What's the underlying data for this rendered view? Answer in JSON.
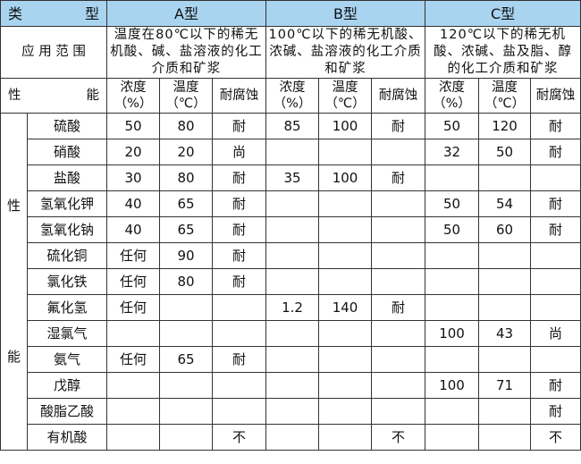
{
  "header": {
    "type_label": "类　　　型",
    "types": [
      "A型",
      "B型",
      "C型"
    ]
  },
  "application": {
    "label": "应 用 范 围",
    "scopes": [
      "温度在80℃以下的稀无机酸、碱、盐溶液的化工介质和矿浆",
      "100℃以下的稀无机酸、浓碱、盐溶液的化工介质和矿浆",
      "120℃以下的稀无机酸、浓碱、盐及脂、醇的化工介质和矿浆"
    ]
  },
  "performance": {
    "label": "性　　　能",
    "side_label_top": "性",
    "side_label_bottom": "能",
    "columns": [
      "浓度（%）",
      "温度（℃）",
      "耐腐蚀"
    ]
  },
  "colors": {
    "header_bg": "#a9d4f0",
    "border": "#333333"
  },
  "rows": [
    {
      "medium": "硫酸",
      "values": [
        "50",
        "80",
        "耐",
        "85",
        "100",
        "耐",
        "50",
        "120",
        "耐"
      ]
    },
    {
      "medium": "硝酸",
      "values": [
        "20",
        "20",
        "尚",
        "",
        "",
        "",
        "32",
        "50",
        "耐"
      ]
    },
    {
      "medium": "盐酸",
      "values": [
        "30",
        "80",
        "耐",
        "35",
        "100",
        "耐",
        "",
        "",
        ""
      ]
    },
    {
      "medium": "氢氧化钾",
      "values": [
        "40",
        "65",
        "耐",
        "",
        "",
        "",
        "50",
        "54",
        "耐"
      ]
    },
    {
      "medium": "氢氧化钠",
      "values": [
        "40",
        "65",
        "耐",
        "",
        "",
        "",
        "50",
        "60",
        "耐"
      ]
    },
    {
      "medium": "硫化铜",
      "values": [
        "任何",
        "90",
        "耐",
        "",
        "",
        "",
        "",
        "",
        ""
      ]
    },
    {
      "medium": "氯化铁",
      "values": [
        "任何",
        "80",
        "耐",
        "",
        "",
        "",
        "",
        "",
        ""
      ]
    },
    {
      "medium": "氟化氢",
      "values": [
        "任何",
        "",
        "",
        "1.2",
        "140",
        "耐",
        "",
        "",
        ""
      ]
    },
    {
      "medium": "湿氯气",
      "values": [
        "",
        "",
        "",
        "",
        "",
        "",
        "100",
        "43",
        "尚"
      ]
    },
    {
      "medium": "氨气",
      "values": [
        "任何",
        "65",
        "耐",
        "",
        "",
        "",
        "",
        "",
        ""
      ]
    },
    {
      "medium": "戊醇",
      "values": [
        "",
        "",
        "",
        "",
        "",
        "",
        "100",
        "71",
        "耐"
      ]
    },
    {
      "medium": "酸脂乙酸",
      "values": [
        "",
        "",
        "",
        "",
        "",
        "",
        "",
        "",
        "耐"
      ]
    },
    {
      "medium": "有机酸",
      "values": [
        "",
        "",
        "不",
        "",
        "",
        "不",
        "",
        "",
        "不"
      ]
    }
  ]
}
